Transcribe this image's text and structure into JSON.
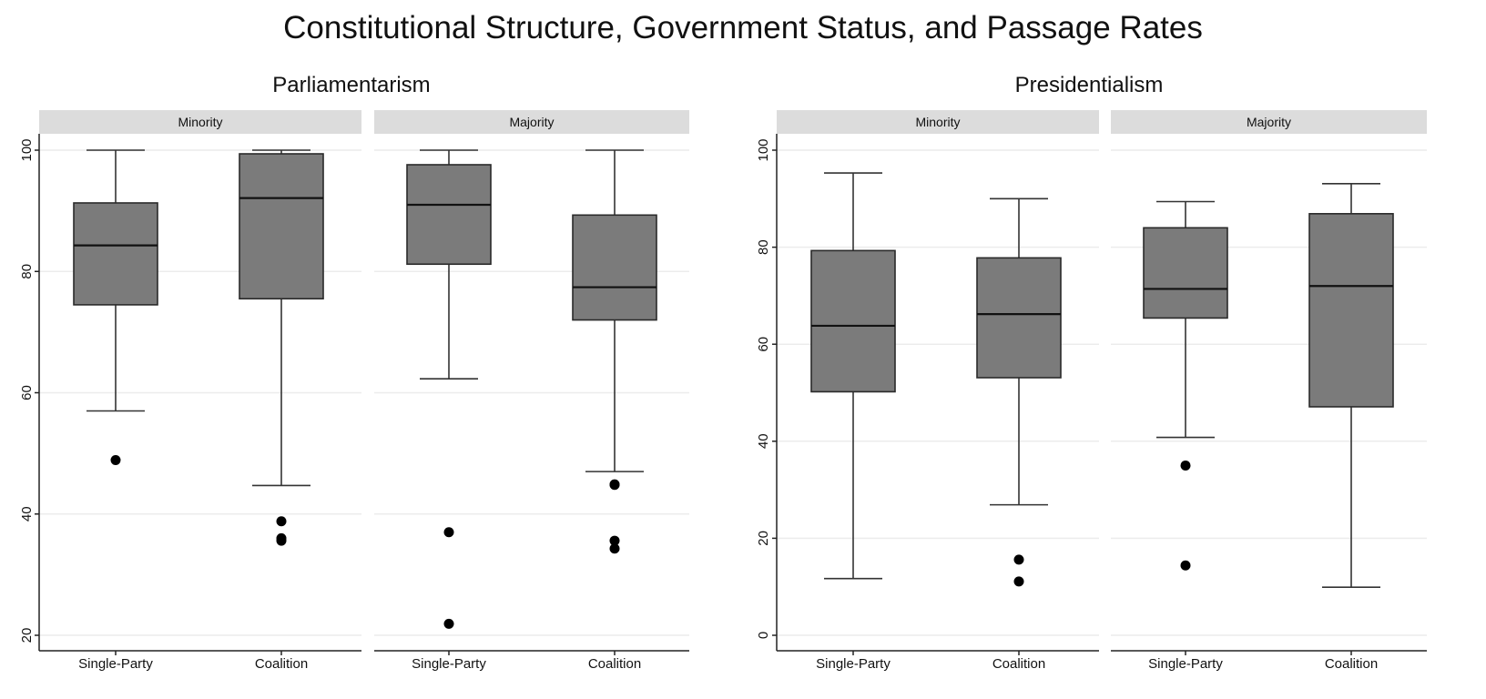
{
  "figure": {
    "title": "Constitutional Structure, Government Status, and Passage Rates"
  },
  "colors": {
    "box_fill": "#7b7b7b",
    "strip_fill": "#dcdcdc",
    "gridline": "#ececec",
    "marker": "#000000"
  },
  "chart_data": [
    {
      "type": "boxplot",
      "title": "Parliamentarism",
      "ylim": [
        20,
        100
      ],
      "yticks": [
        20,
        40,
        60,
        80,
        100
      ],
      "ytick_labels": [
        "20",
        "40",
        "60",
        "80",
        "100"
      ],
      "grid": true,
      "panels": [
        {
          "label": "Minority",
          "categories": [
            "Single-Party",
            "Coalition"
          ],
          "boxes": [
            {
              "category": "Single-Party",
              "whisker_low": 57,
              "q1": 74.5,
              "median": 84.3,
              "q3": 91.3,
              "whisker_high": 100,
              "outliers": [
                48.9
              ]
            },
            {
              "category": "Coalition",
              "whisker_low": 44.7,
              "q1": 75.5,
              "median": 92.1,
              "q3": 99.4,
              "whisker_high": 100,
              "outliers": [
                38.8,
                36,
                35.6
              ]
            }
          ]
        },
        {
          "label": "Majority",
          "categories": [
            "Single-Party",
            "Coalition"
          ],
          "boxes": [
            {
              "category": "Single-Party",
              "whisker_low": 62.3,
              "q1": 81.2,
              "median": 91,
              "q3": 97.6,
              "whisker_high": 100,
              "outliers": [
                37,
                21.9
              ]
            },
            {
              "category": "Coalition",
              "whisker_low": 47,
              "q1": 72,
              "median": 77.4,
              "q3": 89.3,
              "whisker_high": 100,
              "outliers": [
                44.9,
                44.8,
                35.6,
                34.3
              ]
            }
          ]
        }
      ]
    },
    {
      "type": "boxplot",
      "title": "Presidentialism",
      "ylim": [
        0,
        100
      ],
      "yticks": [
        0,
        20,
        40,
        60,
        80,
        100
      ],
      "ytick_labels": [
        "0",
        "20",
        "40",
        "60",
        "80",
        "100"
      ],
      "grid": true,
      "panels": [
        {
          "label": "Minority",
          "categories": [
            "Single-Party",
            "Coalition"
          ],
          "boxes": [
            {
              "category": "Single-Party",
              "whisker_low": 11.7,
              "q1": 50.2,
              "median": 63.8,
              "q3": 79.3,
              "whisker_high": 95.3,
              "outliers": []
            },
            {
              "category": "Coalition",
              "whisker_low": 26.9,
              "q1": 53.1,
              "median": 66.2,
              "q3": 77.8,
              "whisker_high": 90,
              "outliers": [
                15.6,
                11.1
              ]
            }
          ]
        },
        {
          "label": "Majority",
          "categories": [
            "Single-Party",
            "Coalition"
          ],
          "boxes": [
            {
              "category": "Single-Party",
              "whisker_low": 40.8,
              "q1": 65.4,
              "median": 71.4,
              "q3": 84,
              "whisker_high": 89.4,
              "outliers": [
                35,
                14.4
              ]
            },
            {
              "category": "Coalition",
              "whisker_low": 9.9,
              "q1": 47.1,
              "median": 72,
              "q3": 86.9,
              "whisker_high": 93.1,
              "outliers": []
            }
          ]
        }
      ]
    }
  ]
}
